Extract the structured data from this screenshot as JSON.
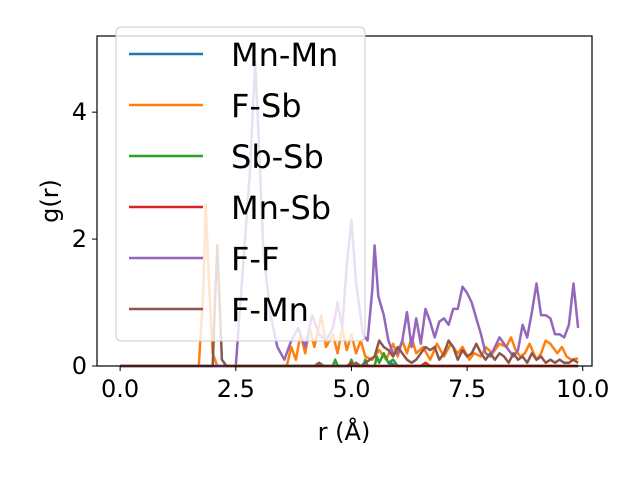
{
  "chart_data": {
    "type": "line",
    "xlabel": "r (Å)",
    "ylabel": "g(r)",
    "xlim": [
      -0.5,
      10.2
    ],
    "ylim": [
      0,
      5.2
    ],
    "xticks": [
      0.0,
      2.5,
      5.0,
      7.5,
      10.0
    ],
    "xtick_labels": [
      "0.0",
      "2.5",
      "5.0",
      "7.5",
      "10.0"
    ],
    "yticks": [
      0,
      2,
      4
    ],
    "ytick_labels": [
      "0",
      "2",
      "4"
    ],
    "grid": false,
    "legend_position": "top-left",
    "series": [
      {
        "name": "Mn-Mn",
        "color": "#1f77b4",
        "points": [
          [
            0,
            0
          ],
          [
            5.8,
            0
          ],
          [
            5.85,
            0.05
          ],
          [
            5.95,
            0
          ],
          [
            9.9,
            0
          ]
        ]
      },
      {
        "name": "F-Sb",
        "color": "#ff7f0e",
        "points": [
          [
            0,
            0
          ],
          [
            1.7,
            0
          ],
          [
            1.8,
            1.2
          ],
          [
            1.85,
            2.55
          ],
          [
            1.92,
            1.3
          ],
          [
            2.0,
            0.2
          ],
          [
            2.1,
            0
          ],
          [
            3.6,
            0
          ],
          [
            3.7,
            0.3
          ],
          [
            3.8,
            0.1
          ],
          [
            3.9,
            0.5
          ],
          [
            4.0,
            0.2
          ],
          [
            4.1,
            0.6
          ],
          [
            4.2,
            0.3
          ],
          [
            4.35,
            0.8
          ],
          [
            4.45,
            0.3
          ],
          [
            4.6,
            0.5
          ],
          [
            4.7,
            0.2
          ],
          [
            4.8,
            0.6
          ],
          [
            4.9,
            0.25
          ],
          [
            5.0,
            0.5
          ],
          [
            5.1,
            0.2
          ],
          [
            5.2,
            0.4
          ],
          [
            5.3,
            0.15
          ],
          [
            5.45,
            0.1
          ],
          [
            5.6,
            0.25
          ],
          [
            5.75,
            0.1
          ],
          [
            5.9,
            0.35
          ],
          [
            6.0,
            0.15
          ],
          [
            6.1,
            0.4
          ],
          [
            6.2,
            0.2
          ],
          [
            6.3,
            0.45
          ],
          [
            6.4,
            0.2
          ],
          [
            6.55,
            0.3
          ],
          [
            6.7,
            0.1
          ],
          [
            6.85,
            0.35
          ],
          [
            7.0,
            0.15
          ],
          [
            7.15,
            0.35
          ],
          [
            7.3,
            0.2
          ],
          [
            7.4,
            0.3
          ],
          [
            7.55,
            0.1
          ],
          [
            7.65,
            0.2
          ],
          [
            7.8,
            0.15
          ],
          [
            7.9,
            0.3
          ],
          [
            8.05,
            0.2
          ],
          [
            8.2,
            0.35
          ],
          [
            8.35,
            0.3
          ],
          [
            8.45,
            0.45
          ],
          [
            8.55,
            0.25
          ],
          [
            8.65,
            0.15
          ],
          [
            8.75,
            0.2
          ],
          [
            8.85,
            0.35
          ],
          [
            9.0,
            0.1
          ],
          [
            9.1,
            0.2
          ],
          [
            9.2,
            0.4
          ],
          [
            9.3,
            0.35
          ],
          [
            9.45,
            0.2
          ],
          [
            9.55,
            0.3
          ],
          [
            9.65,
            0.15
          ],
          [
            9.75,
            0.1
          ],
          [
            9.9,
            0.12
          ]
        ]
      },
      {
        "name": "Sb-Sb",
        "color": "#2ca02c",
        "points": [
          [
            0,
            0
          ],
          [
            4.6,
            0
          ],
          [
            4.65,
            0.1
          ],
          [
            4.7,
            0
          ],
          [
            4.95,
            0
          ],
          [
            5.0,
            0.1
          ],
          [
            5.05,
            0
          ],
          [
            5.25,
            0
          ],
          [
            5.3,
            0.1
          ],
          [
            5.35,
            0
          ],
          [
            5.5,
            0
          ],
          [
            5.55,
            0.15
          ],
          [
            5.6,
            0.05
          ],
          [
            5.7,
            0.2
          ],
          [
            5.8,
            0.05
          ],
          [
            5.9,
            0.1
          ],
          [
            6.0,
            0
          ],
          [
            9.9,
            0
          ]
        ]
      },
      {
        "name": "Mn-Sb",
        "color": "#d62728",
        "points": [
          [
            0,
            0
          ],
          [
            4.9,
            0
          ],
          [
            5.0,
            0.05
          ],
          [
            5.1,
            0
          ],
          [
            6.5,
            0
          ],
          [
            6.6,
            0.05
          ],
          [
            6.7,
            0
          ],
          [
            9.9,
            0
          ]
        ]
      },
      {
        "name": "F-F",
        "color": "#9467bd",
        "points": [
          [
            0,
            0
          ],
          [
            2.5,
            0
          ],
          [
            2.55,
            0.5
          ],
          [
            2.65,
            1.5
          ],
          [
            2.8,
            3.0
          ],
          [
            2.92,
            4.8
          ],
          [
            3.0,
            3.5
          ],
          [
            3.1,
            1.8
          ],
          [
            3.25,
            0.8
          ],
          [
            3.4,
            0.3
          ],
          [
            3.55,
            0.1
          ],
          [
            3.7,
            0.4
          ],
          [
            3.85,
            0.6
          ],
          [
            4.0,
            0.3
          ],
          [
            4.15,
            0.8
          ],
          [
            4.3,
            0.5
          ],
          [
            4.45,
            0.4
          ],
          [
            4.6,
            0.6
          ],
          [
            4.7,
            1.0
          ],
          [
            4.8,
            0.6
          ],
          [
            4.9,
            1.6
          ],
          [
            5.0,
            2.3
          ],
          [
            5.1,
            1.3
          ],
          [
            5.25,
            0.5
          ],
          [
            5.35,
            0.4
          ],
          [
            5.45,
            1.2
          ],
          [
            5.5,
            1.9
          ],
          [
            5.58,
            1.1
          ],
          [
            5.7,
            0.8
          ],
          [
            5.8,
            0.4
          ],
          [
            5.9,
            0.2
          ],
          [
            6.0,
            0.2
          ],
          [
            6.1,
            0.4
          ],
          [
            6.2,
            0.85
          ],
          [
            6.3,
            0.3
          ],
          [
            6.4,
            0.75
          ],
          [
            6.5,
            0.35
          ],
          [
            6.6,
            0.9
          ],
          [
            6.7,
            0.7
          ],
          [
            6.8,
            0.45
          ],
          [
            6.9,
            0.7
          ],
          [
            7.0,
            0.75
          ],
          [
            7.1,
            0.65
          ],
          [
            7.2,
            0.9
          ],
          [
            7.3,
            0.9
          ],
          [
            7.4,
            1.25
          ],
          [
            7.5,
            1.15
          ],
          [
            7.6,
            1.0
          ],
          [
            7.7,
            0.75
          ],
          [
            7.8,
            0.5
          ],
          [
            7.9,
            0.2
          ],
          [
            8.0,
            0.15
          ],
          [
            8.1,
            0.3
          ],
          [
            8.2,
            0.45
          ],
          [
            8.3,
            0.35
          ],
          [
            8.4,
            0.25
          ],
          [
            8.5,
            0.15
          ],
          [
            8.6,
            0.25
          ],
          [
            8.7,
            0.65
          ],
          [
            8.8,
            0.45
          ],
          [
            8.9,
            0.85
          ],
          [
            9.0,
            1.3
          ],
          [
            9.1,
            0.8
          ],
          [
            9.2,
            0.8
          ],
          [
            9.3,
            0.75
          ],
          [
            9.4,
            0.5
          ],
          [
            9.5,
            0.5
          ],
          [
            9.6,
            0.45
          ],
          [
            9.7,
            0.65
          ],
          [
            9.8,
            1.3
          ],
          [
            9.9,
            0.6
          ]
        ]
      },
      {
        "name": "F-Mn",
        "color": "#8c564b",
        "points": [
          [
            0,
            0
          ],
          [
            2.0,
            0
          ],
          [
            2.05,
            1.0
          ],
          [
            2.1,
            1.9
          ],
          [
            2.15,
            1.0
          ],
          [
            2.2,
            0.1
          ],
          [
            2.3,
            0
          ],
          [
            4.2,
            0
          ],
          [
            4.3,
            0.05
          ],
          [
            4.4,
            0
          ],
          [
            5.0,
            0
          ],
          [
            5.1,
            0.05
          ],
          [
            5.2,
            0
          ],
          [
            5.4,
            0.1
          ],
          [
            5.5,
            0.15
          ],
          [
            5.6,
            0.4
          ],
          [
            5.7,
            0.3
          ],
          [
            5.8,
            0.25
          ],
          [
            5.9,
            0.15
          ],
          [
            6.0,
            0.3
          ],
          [
            6.1,
            0.2
          ],
          [
            6.2,
            0.1
          ],
          [
            6.3,
            0.05
          ],
          [
            6.4,
            0.1
          ],
          [
            6.5,
            0.2
          ],
          [
            6.6,
            0.3
          ],
          [
            6.7,
            0.25
          ],
          [
            6.8,
            0.3
          ],
          [
            6.9,
            0.1
          ],
          [
            7.0,
            0.2
          ],
          [
            7.1,
            0.4
          ],
          [
            7.2,
            0.3
          ],
          [
            7.3,
            0.1
          ],
          [
            7.4,
            0.25
          ],
          [
            7.5,
            0.15
          ],
          [
            7.6,
            0.2
          ],
          [
            7.7,
            0.35
          ],
          [
            7.8,
            0.2
          ],
          [
            7.9,
            0.1
          ],
          [
            8.0,
            0.2
          ],
          [
            8.1,
            0.1
          ],
          [
            8.2,
            0.2
          ],
          [
            8.3,
            0.15
          ],
          [
            8.4,
            0.05
          ],
          [
            8.5,
            0.2
          ],
          [
            8.6,
            0.1
          ],
          [
            8.7,
            0.15
          ],
          [
            8.8,
            0.05
          ],
          [
            8.9,
            0.2
          ],
          [
            9.0,
            0.1
          ],
          [
            9.1,
            0.15
          ],
          [
            9.2,
            0.05
          ],
          [
            9.3,
            0.1
          ],
          [
            9.4,
            0.05
          ],
          [
            9.5,
            0.1
          ],
          [
            9.6,
            0.05
          ],
          [
            9.7,
            0.05
          ],
          [
            9.8,
            0.1
          ],
          [
            9.9,
            0.05
          ]
        ]
      }
    ]
  }
}
